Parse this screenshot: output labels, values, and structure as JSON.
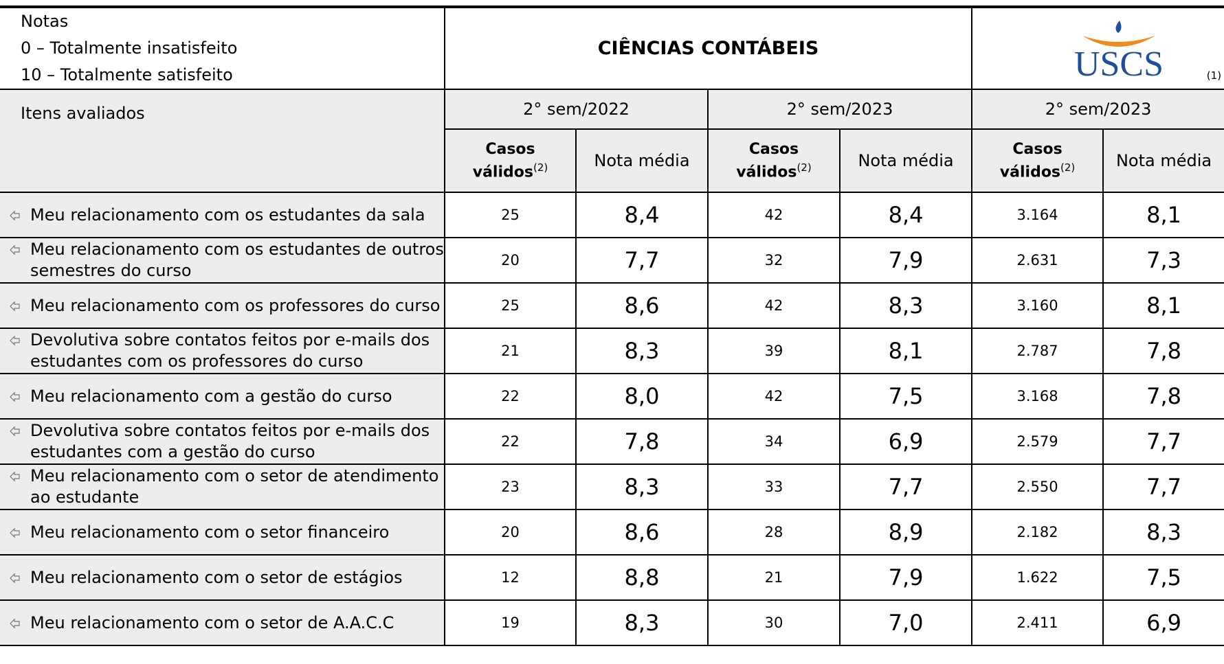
{
  "header": {
    "notes": [
      "Notas",
      "0 – Totalmente insatisfeito",
      "10 – Totalmente satisfeito"
    ],
    "title": "CIÊNCIAS CONTÁBEIS",
    "logo": "USCS",
    "logo_note": "(1)"
  },
  "table": {
    "item_header": "Itens avaliados",
    "periods": [
      "2° sem/2022",
      "2° sem/2023",
      "2° sem/2023"
    ],
    "count_header": [
      "Casos",
      "válidos"
    ],
    "count_note": "(2)",
    "mean_header": "Nota média",
    "rows": [
      [
        "Meu relacionamento com os estudantes da sala",
        "25",
        "8,4",
        "42",
        "8,4",
        "3.164",
        "8,1"
      ],
      [
        "Meu relacionamento com os estudantes de outros semestres do curso",
        "20",
        "7,7",
        "32",
        "7,9",
        "2.631",
        "7,3"
      ],
      [
        "Meu relacionamento com os professores do curso",
        "25",
        "8,6",
        "42",
        "8,3",
        "3.160",
        "8,1"
      ],
      [
        "Devolutiva sobre contatos feitos por e-mails dos estudantes com os professores do curso",
        "21",
        "8,3",
        "39",
        "8,1",
        "2.787",
        "7,8"
      ],
      [
        "Meu relacionamento com a gestão do curso",
        "22",
        "8,0",
        "42",
        "7,5",
        "3.168",
        "7,8"
      ],
      [
        "Devolutiva sobre contatos feitos por e-mails dos estudantes com a gestão do curso",
        "22",
        "7,8",
        "34",
        "6,9",
        "2.579",
        "7,7"
      ],
      [
        "Meu relacionamento com o setor de atendimento ao estudante",
        "23",
        "8,3",
        "33",
        "7,7",
        "2.550",
        "7,7"
      ],
      [
        "Meu relacionamento com o setor financeiro",
        "20",
        "8,6",
        "28",
        "8,9",
        "2.182",
        "8,3"
      ],
      [
        "Meu relacionamento com o setor de estágios",
        "12",
        "8,8",
        "21",
        "7,9",
        "1.622",
        "7,5"
      ],
      [
        "Meu relacionamento com o setor de A.A.C.C",
        "19",
        "8,3",
        "30",
        "7,0",
        "2.411",
        "6,9"
      ]
    ]
  }
}
